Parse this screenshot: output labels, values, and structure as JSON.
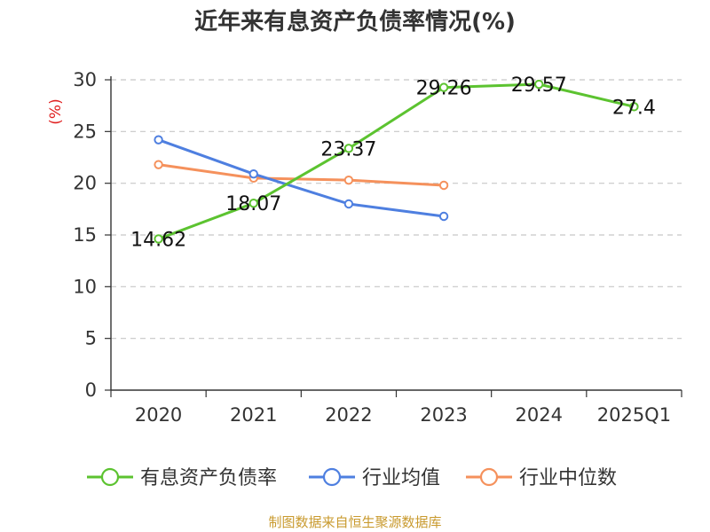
{
  "chart_data": {
    "type": "line",
    "title": "近年来有息资产负债率情况(%)",
    "ylabel": "(%)",
    "xlabel": "",
    "categories": [
      "2020",
      "2021",
      "2022",
      "2023",
      "2024",
      "2025Q1"
    ],
    "ylim": [
      0,
      30
    ],
    "yticks": [
      0,
      5,
      10,
      15,
      20,
      25,
      30
    ],
    "grid": true,
    "legend_position": "bottom",
    "series": [
      {
        "name": "有息资产负债率",
        "color": "#5cc330",
        "values": [
          14.62,
          18.07,
          23.37,
          29.26,
          29.57,
          27.4
        ],
        "labels": [
          "14.62",
          "18.07",
          "23.37",
          "29.26",
          "29.57",
          "27.4"
        ]
      },
      {
        "name": "行业均值",
        "color": "#4e7fe0",
        "values": [
          24.2,
          20.9,
          18.0,
          16.8,
          null,
          null
        ]
      },
      {
        "name": "行业中位数",
        "color": "#f5915c",
        "values": [
          21.8,
          20.5,
          20.3,
          19.8,
          null,
          null
        ]
      }
    ]
  },
  "footer": {
    "source": "制图数据来自恒生聚源数据库"
  }
}
